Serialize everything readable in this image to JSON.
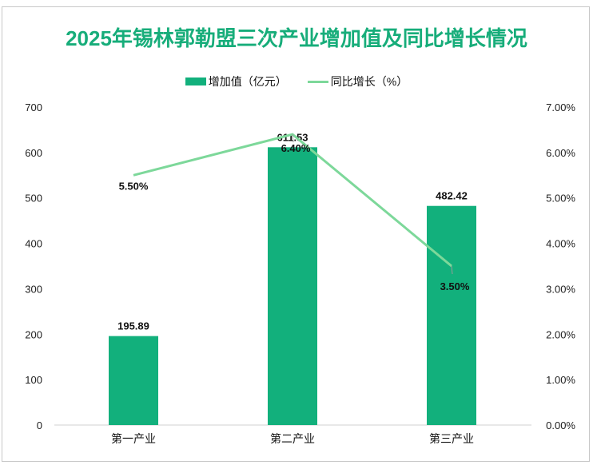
{
  "chart_data": {
    "type": "bar+line",
    "title": "2025年锡林郭勒盟三次产业增加值及同比增长情况",
    "categories": [
      "第一产业",
      "第二产业",
      "第三产业"
    ],
    "series": [
      {
        "name": "增加值（亿元）",
        "type": "bar",
        "axis": "left",
        "values": [
          195.89,
          611.53,
          482.42
        ],
        "labels": [
          "195.89",
          "611.53",
          "482.42"
        ],
        "color": "#12b07c"
      },
      {
        "name": "同比增长（%）",
        "type": "line",
        "axis": "right",
        "values": [
          5.5,
          6.4,
          3.5
        ],
        "labels": [
          "5.50%",
          "6.40%",
          "3.50%"
        ],
        "color": "#7dd89a"
      }
    ],
    "left_axis": {
      "range": [
        0,
        700
      ],
      "ticks": [
        "0",
        "100",
        "200",
        "300",
        "400",
        "500",
        "600",
        "700"
      ]
    },
    "right_axis": {
      "range": [
        0,
        7
      ],
      "ticks": [
        "0.00%",
        "1.00%",
        "2.00%",
        "3.00%",
        "4.00%",
        "5.00%",
        "6.00%",
        "7.00%"
      ]
    },
    "legend": "top-center",
    "grid": false
  }
}
